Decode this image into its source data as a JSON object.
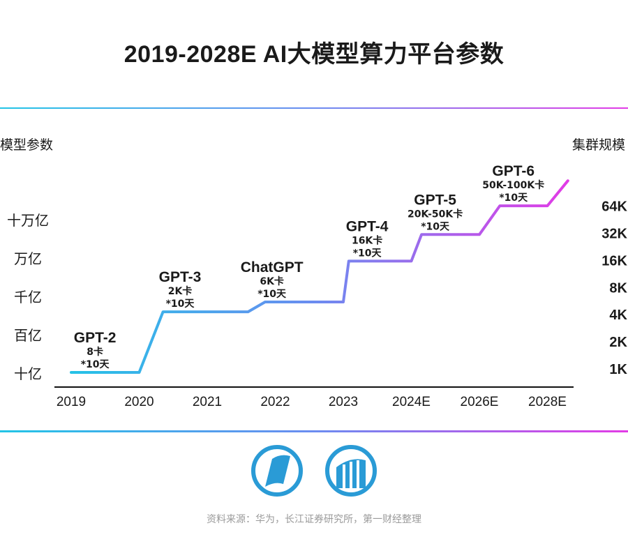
{
  "title": "2019-2028E AI大模型算力平台参数",
  "chart_data": {
    "type": "line",
    "title": "2019-2028E AI大模型算力平台参数",
    "ylabel_left": "模型参数",
    "ylabel_right": "集群规模",
    "categories": [
      "2019",
      "2020",
      "2021",
      "2022",
      "2023",
      "2024E",
      "2026E",
      "2028E"
    ],
    "y_left_ticks": [
      "十亿",
      "百亿",
      "千亿",
      "万亿",
      "十万亿"
    ],
    "y_right_ticks": [
      "1K",
      "2K",
      "4K",
      "8K",
      "16K",
      "32K",
      "64K"
    ],
    "series": [
      {
        "name": "模型参数",
        "points": [
          {
            "x": 0.0,
            "level": 0.0
          },
          {
            "x": 1.0,
            "level": 0.0
          },
          {
            "x": 1.35,
            "level": 1.6
          },
          {
            "x": 2.0,
            "level": 1.6
          },
          {
            "x": 2.6,
            "level": 1.6
          },
          {
            "x": 2.85,
            "level": 1.86
          },
          {
            "x": 3.6,
            "level": 1.86
          },
          {
            "x": 4.0,
            "level": 1.86
          },
          {
            "x": 4.08,
            "level": 2.94
          },
          {
            "x": 5.0,
            "level": 2.94
          },
          {
            "x": 5.15,
            "level": 3.64
          },
          {
            "x": 6.0,
            "level": 3.64
          },
          {
            "x": 6.3,
            "level": 4.4
          },
          {
            "x": 7.0,
            "level": 4.4
          },
          {
            "x": 7.3,
            "level": 5.06
          }
        ]
      }
    ],
    "annotations": [
      {
        "name": "GPT-2",
        "cards": "8卡",
        "duration": "*10天",
        "x": 0.35,
        "level": 0.0
      },
      {
        "name": "GPT-3",
        "cards": "2K卡",
        "duration": "*10天",
        "x": 1.6,
        "level": 1.6
      },
      {
        "name": "ChatGPT",
        "cards": "6K卡",
        "duration": "*10天",
        "x": 2.95,
        "level": 1.86
      },
      {
        "name": "GPT-4",
        "cards": "16K卡",
        "duration": "*10天",
        "x": 4.35,
        "level": 2.94
      },
      {
        "name": "GPT-5",
        "cards": "20K-50K卡",
        "duration": "*10天",
        "x": 5.35,
        "level": 3.64
      },
      {
        "name": "GPT-6",
        "cards": "50K-100K卡",
        "duration": "*10天",
        "x": 6.5,
        "level": 4.4
      }
    ]
  },
  "source": "资料来源：华为，长江证券研究所，第一财经整理",
  "colors": {
    "line_start": "#22c4e6",
    "line_mid": "#6b8cf0",
    "line_end": "#e23be6",
    "logo_blue": "#2a9bd6",
    "axis": "#111111"
  }
}
